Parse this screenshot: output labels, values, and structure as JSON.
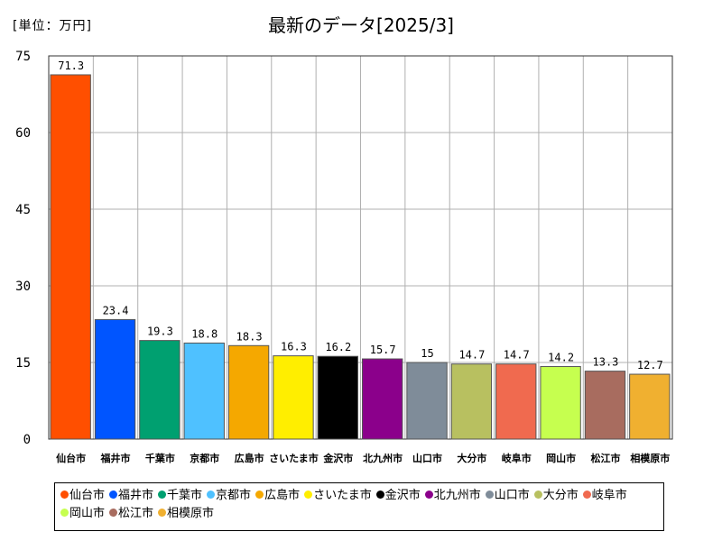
{
  "unit_label": "[単位：万円]",
  "chart_data": {
    "type": "bar",
    "title": "最新のデータ[2025/3]",
    "categories": [
      "仙台市",
      "福井市",
      "千葉市",
      "京都市",
      "広島市",
      "さいたま市",
      "金沢市",
      "北九州市",
      "山口市",
      "大分市",
      "岐阜市",
      "岡山市",
      "松江市",
      "相模原市"
    ],
    "values": [
      71.3,
      23.4,
      19.3,
      18.8,
      18.3,
      16.3,
      16.2,
      15.7,
      15,
      14.7,
      14.7,
      14.2,
      13.3,
      12.7
    ],
    "value_labels": [
      "71.3",
      "23.4",
      "19.3",
      "18.8",
      "18.3",
      "16.3",
      "16.2",
      "15.7",
      "15",
      "14.7",
      "14.7",
      "14.2",
      "13.3",
      "12.7"
    ],
    "colors": [
      "#ff4f00",
      "#0055ff",
      "#00a070",
      "#4fc1ff",
      "#f5a800",
      "#ffee00",
      "#000000",
      "#8b008b",
      "#7f8c99",
      "#b8c060",
      "#f06a4f",
      "#c6ff4f",
      "#a86c5f",
      "#f0b030"
    ],
    "ylim": [
      0,
      75
    ],
    "yticks": [
      0,
      15,
      30,
      45,
      60,
      75
    ],
    "grid": true,
    "legend_position": "bottom",
    "xlabel": "",
    "ylabel": ""
  }
}
